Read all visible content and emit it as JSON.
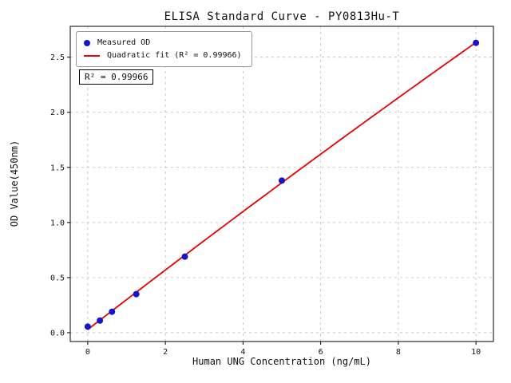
{
  "chart_data": {
    "type": "scatter",
    "title": "ELISA Standard Curve - PY0813Hu-T",
    "xlabel": "Human UNG Concentration (ng/mL)",
    "ylabel": "OD Value(450nm)",
    "xlim": [
      -0.45,
      10.45
    ],
    "ylim": [
      -0.08,
      2.78
    ],
    "xticks": [
      0,
      2,
      4,
      6,
      8,
      10
    ],
    "yticks": [
      0,
      0.5,
      1,
      1.5,
      2,
      2.5
    ],
    "grid": true,
    "grid_style": "dashed",
    "legend_position": "upper-left",
    "annotation": "R² = 0.99966",
    "series": [
      {
        "name": "Measured OD",
        "type": "scatter",
        "color": "#1414cc",
        "x": [
          0,
          0.313,
          0.625,
          1.25,
          2.5,
          5,
          10
        ],
        "y": [
          0.055,
          0.11,
          0.19,
          0.35,
          0.69,
          1.38,
          2.63
        ]
      },
      {
        "name": "Quadratic fit (R² = 0.99966)",
        "type": "line",
        "fit": "quadratic",
        "color": "#e60000",
        "x_range": [
          0,
          10
        ]
      }
    ]
  }
}
